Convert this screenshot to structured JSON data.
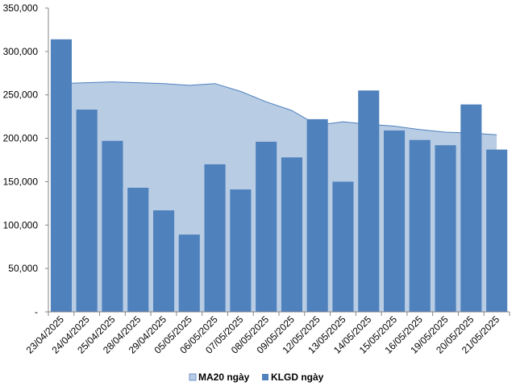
{
  "chart_data": {
    "type": "bar",
    "categories": [
      "23/04/2025",
      "24/04/2025",
      "25/04/2025",
      "28/04/2025",
      "29/04/2025",
      "05/05/2025",
      "06/05/2025",
      "07/05/2025",
      "08/05/2025",
      "09/05/2025",
      "12/05/2025",
      "13/05/2025",
      "14/05/2025",
      "15/05/2025",
      "16/05/2025",
      "19/05/2025",
      "20/05/2025",
      "21/05/2025"
    ],
    "series": [
      {
        "name": "MA20 ngày",
        "type": "area",
        "color": "#b8cce4",
        "values": [
          263000,
          264000,
          265000,
          264000,
          263000,
          261000,
          263000,
          254000,
          242000,
          232000,
          215000,
          219000,
          216000,
          214000,
          210000,
          207000,
          206000,
          204000
        ]
      },
      {
        "name": "KLGD ngày",
        "type": "bar",
        "color": "#4f81bd",
        "values": [
          314000,
          233000,
          197000,
          143000,
          117000,
          89000,
          170000,
          141000,
          196000,
          178000,
          222000,
          150000,
          255000,
          209000,
          198000,
          192000,
          239000,
          187000
        ]
      }
    ],
    "y_ticks": [
      "-",
      "50,000",
      "100,000",
      "150,000",
      "200,000",
      "250,000",
      "300,000",
      "350,000"
    ],
    "ylim": [
      0,
      350000
    ],
    "legend_position": "bottom"
  }
}
